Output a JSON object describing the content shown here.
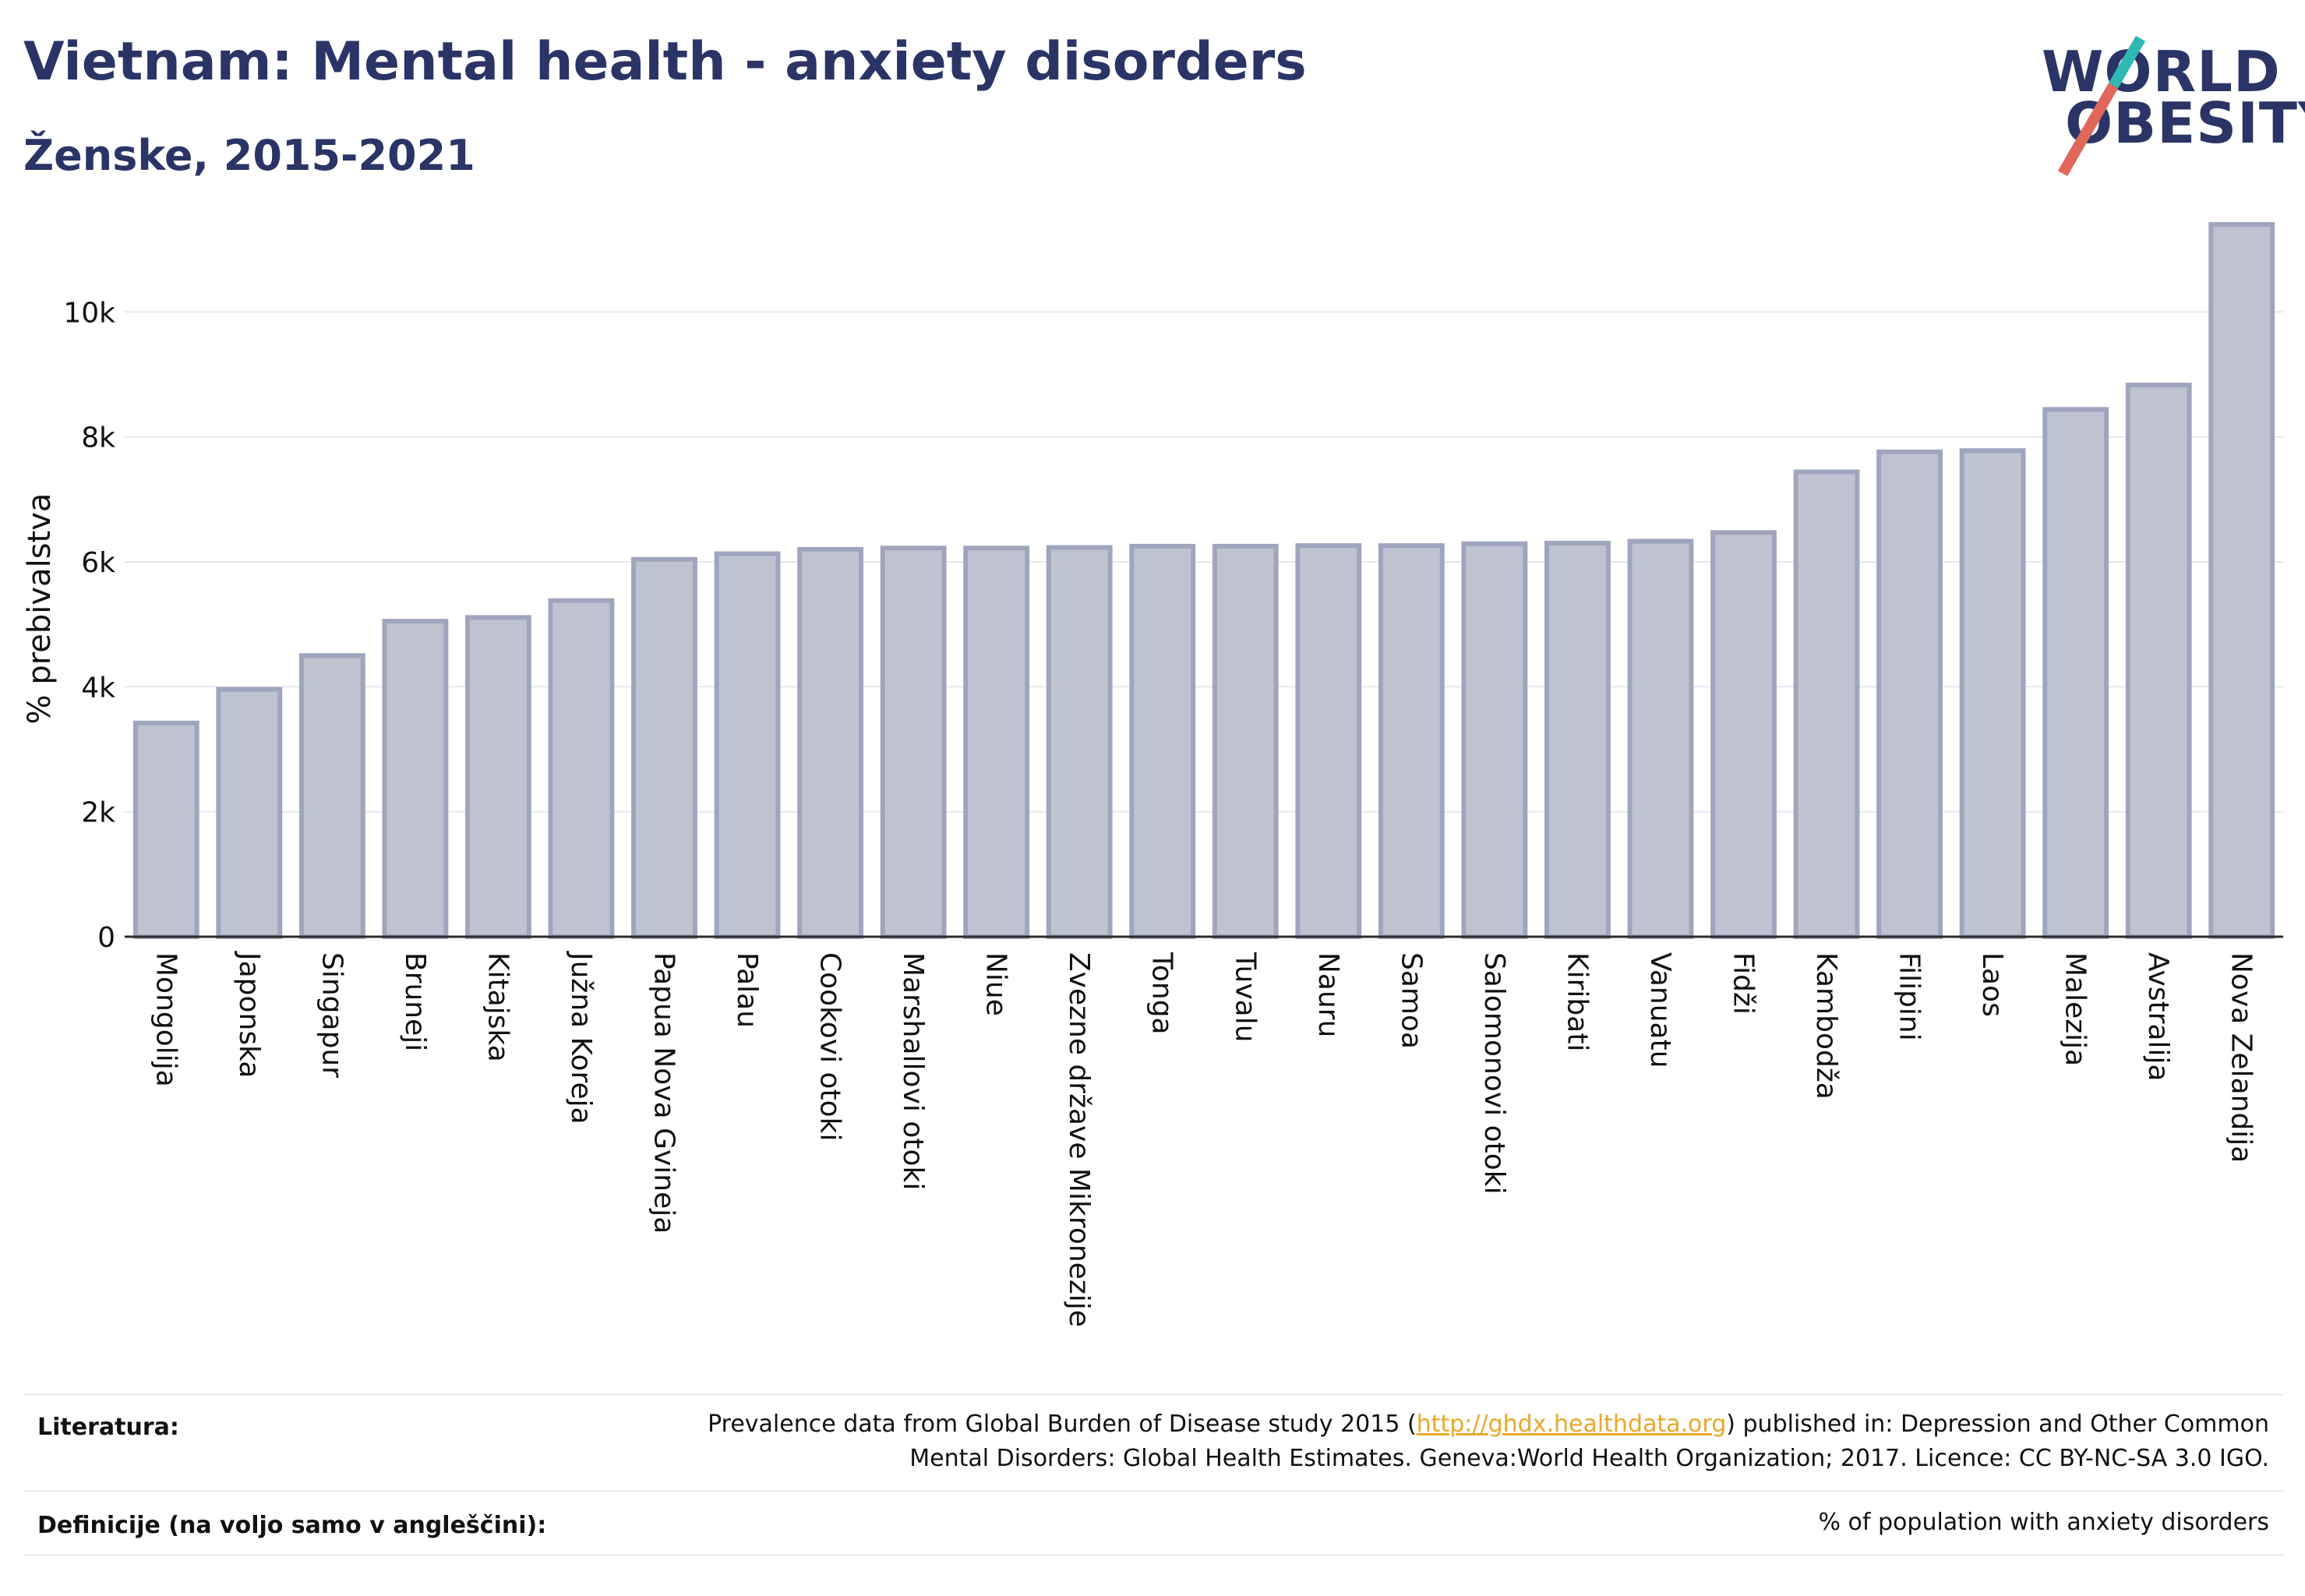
{
  "header": {
    "title": "Vietnam: Mental health - anxiety disorders",
    "subtitle": "Ženske, 2015-2021"
  },
  "logo": {
    "line1": "WORLD",
    "line2": "OBESITY",
    "accent_top": "#2fb9b2",
    "accent_bottom": "#e0685a"
  },
  "chart_data": {
    "type": "bar",
    "ylabel": "% prebivalstva",
    "ylim": [
      0,
      11500
    ],
    "yticks": [
      {
        "value": 0,
        "label": "0"
      },
      {
        "value": 2000,
        "label": "2k"
      },
      {
        "value": 4000,
        "label": "4k"
      },
      {
        "value": 6000,
        "label": "6k"
      },
      {
        "value": 8000,
        "label": "8k"
      },
      {
        "value": 10000,
        "label": "10k"
      }
    ],
    "grid": true,
    "bar_fill": "#bfc3d1",
    "bar_stroke": "#9fa5bd",
    "categories": [
      "Mongolija",
      "Japonska",
      "Singapur",
      "Bruneji",
      "Kitajska",
      "Južna Koreja",
      "Papua Nova Gvineja",
      "Palau",
      "Cookovi otoki",
      "Marshallovi otoki",
      "Niue",
      "Zvezne države Mikronezije",
      "Tonga",
      "Tuvalu",
      "Nauru",
      "Samoa",
      "Salomonovi otoki",
      "Kiribati",
      "Vanuatu",
      "Fidži",
      "Kambodža",
      "Filipini",
      "Laos",
      "Malezija",
      "Avstralija",
      "Nova Zelandija"
    ],
    "values": [
      3420,
      3960,
      4500,
      5050,
      5110,
      5380,
      6040,
      6130,
      6200,
      6220,
      6220,
      6230,
      6250,
      6250,
      6260,
      6260,
      6290,
      6300,
      6330,
      6470,
      7440,
      7760,
      7780,
      8440,
      8830,
      11400
    ]
  },
  "footer": {
    "literature_label": "Literatura:",
    "literature_text_before": "Prevalence data from Global Burden of Disease study 2015 (",
    "literature_link": "http://ghdx.healthdata.org",
    "literature_text_after": ") published in: Depression and Other Common",
    "literature_line2": "Mental Disorders: Global Health Estimates. Geneva:World Health Organization; 2017. Licence: CC BY-NC-SA 3.0 IGO.",
    "definitions_label": "Definicije (na voljo samo v angleščini):",
    "definitions_text": "% of population with anxiety disorders"
  }
}
